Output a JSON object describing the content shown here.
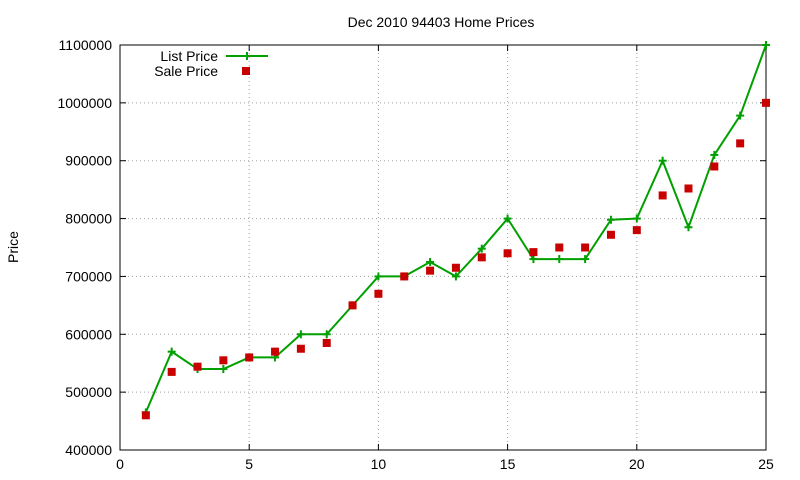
{
  "chart_data": {
    "type": "line",
    "title": "Dec 2010 94403 Home Prices",
    "xlabel": "",
    "ylabel": "Price",
    "xlim": [
      0,
      25
    ],
    "ylim": [
      400000,
      1100000
    ],
    "x_ticks": [
      0,
      5,
      10,
      15,
      20,
      25
    ],
    "y_ticks": [
      400000,
      500000,
      600000,
      700000,
      800000,
      900000,
      1000000,
      1100000
    ],
    "grid": true,
    "legend_position": "top-left",
    "x": [
      1,
      2,
      3,
      4,
      5,
      6,
      7,
      8,
      9,
      10,
      11,
      12,
      13,
      14,
      15,
      16,
      17,
      18,
      19,
      20,
      21,
      22,
      23,
      24,
      25
    ],
    "series": [
      {
        "name": "List Price",
        "style": "line-with-plus-markers",
        "color": "#00a000",
        "values": [
          465000,
          570000,
          540000,
          540000,
          560000,
          560000,
          600000,
          600000,
          650000,
          700000,
          700000,
          725000,
          700000,
          748000,
          800000,
          730000,
          730000,
          730000,
          798000,
          800000,
          900000,
          785000,
          910000,
          978000,
          1100000
        ]
      },
      {
        "name": "Sale Price",
        "style": "square-markers",
        "color": "#c80000",
        "values": [
          460000,
          535000,
          544000,
          555000,
          560000,
          570000,
          575000,
          585000,
          650000,
          670000,
          700000,
          710000,
          715000,
          733000,
          740000,
          742000,
          750000,
          750000,
          772000,
          780000,
          840000,
          852000,
          890000,
          930000,
          1000000
        ]
      }
    ]
  }
}
